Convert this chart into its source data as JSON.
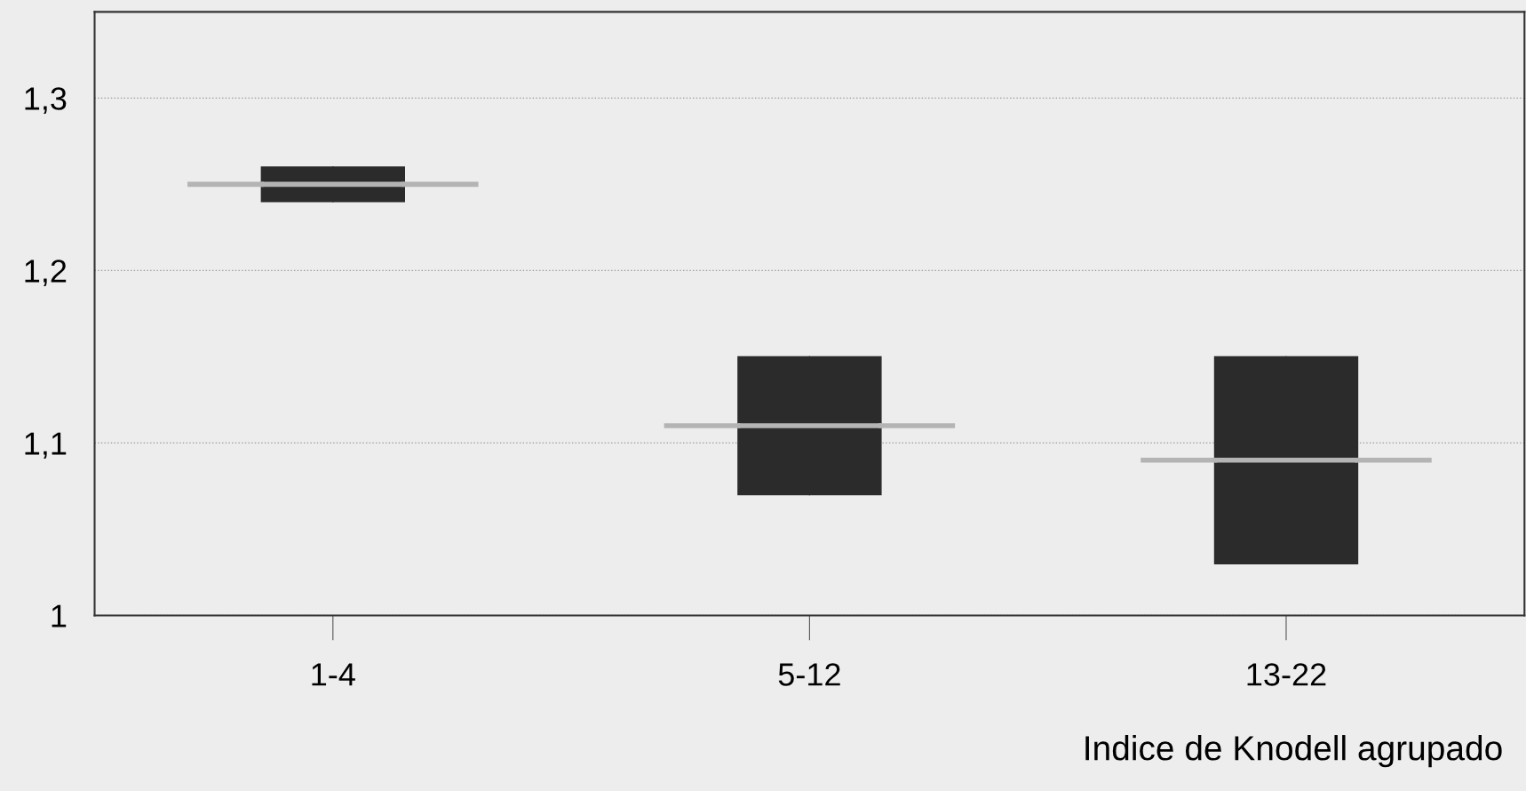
{
  "chart_data": {
    "type": "box",
    "xlabel": "Indice de Knodell agrupado",
    "categories": [
      "1-4",
      "5-12",
      "13-22"
    ],
    "boxes": [
      {
        "low": 1.24,
        "q1": 1.24,
        "median": 1.25,
        "q3": 1.26,
        "high": 1.26
      },
      {
        "low": 1.07,
        "q1": 1.07,
        "median": 1.11,
        "q3": 1.15,
        "high": 1.15
      },
      {
        "low": 1.03,
        "q1": 1.03,
        "median": 1.09,
        "q3": 1.15,
        "high": 1.15
      }
    ],
    "color": "#2b2b2b",
    "ylim": [
      1,
      1.35
    ],
    "yticks": [
      {
        "value": 1,
        "label": "1"
      },
      {
        "value": 1.1,
        "label": "1,1"
      },
      {
        "value": 1.2,
        "label": "1,2"
      },
      {
        "value": 1.3,
        "label": "1,3"
      }
    ],
    "grid": "y"
  }
}
